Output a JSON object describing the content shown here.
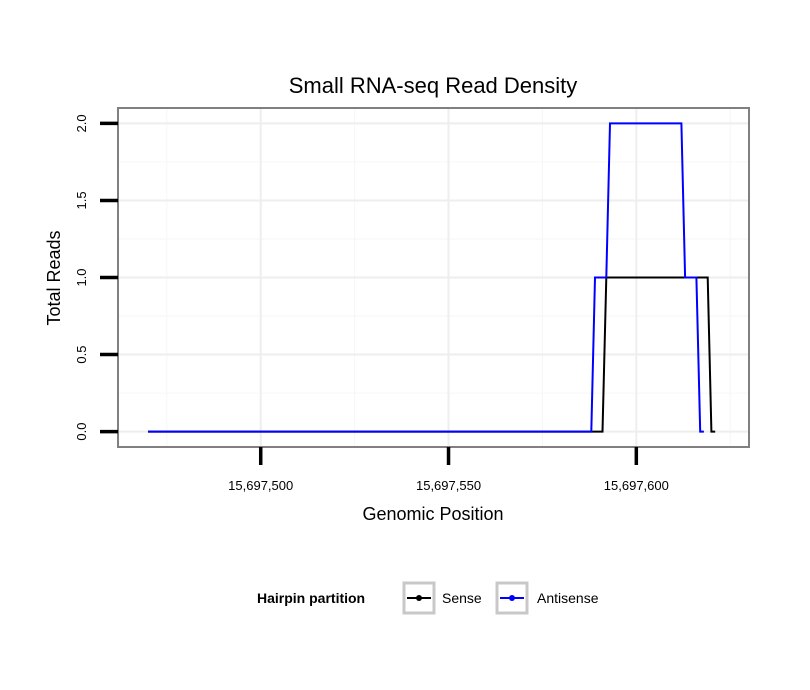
{
  "chart_data": {
    "type": "line",
    "title": "Small RNA-seq Read Density",
    "xlabel": "Genomic Position",
    "ylabel": "Total Reads",
    "xlim": [
      15697462,
      15697630
    ],
    "ylim": [
      -0.1,
      2.1
    ],
    "x_ticks": [
      {
        "value": 15697500,
        "label": "15,697,500"
      },
      {
        "value": 15697550,
        "label": "15,697,550"
      },
      {
        "value": 15697600,
        "label": "15,697,600"
      }
    ],
    "y_ticks": [
      {
        "value": 0.0,
        "label": "0.0"
      },
      {
        "value": 0.5,
        "label": "0.5"
      },
      {
        "value": 1.0,
        "label": "1.0"
      },
      {
        "value": 1.5,
        "label": "1.5"
      },
      {
        "value": 2.0,
        "label": "2.0"
      }
    ],
    "x_minor_grid": [
      15697475,
      15697525,
      15697575,
      15697625
    ],
    "y_minor_grid": [
      0.25,
      0.75,
      1.25,
      1.75
    ],
    "grid": true,
    "legend": {
      "title": "Hairpin partition",
      "position": "bottom"
    },
    "series": [
      {
        "name": "Sense",
        "color": "#000000",
        "x": [
          15697470,
          15697591,
          15697592,
          15697619,
          15697620,
          15697621
        ],
        "y": [
          0,
          0,
          1,
          1,
          0,
          0
        ]
      },
      {
        "name": "Antisense",
        "color": "#0000ff",
        "x": [
          15697470,
          15697588,
          15697589,
          15697592,
          15697593,
          15697612,
          15697613,
          15697616,
          15697617,
          15697618
        ],
        "y": [
          0,
          0,
          1,
          1,
          2,
          2,
          1,
          1,
          0,
          0
        ]
      }
    ]
  }
}
